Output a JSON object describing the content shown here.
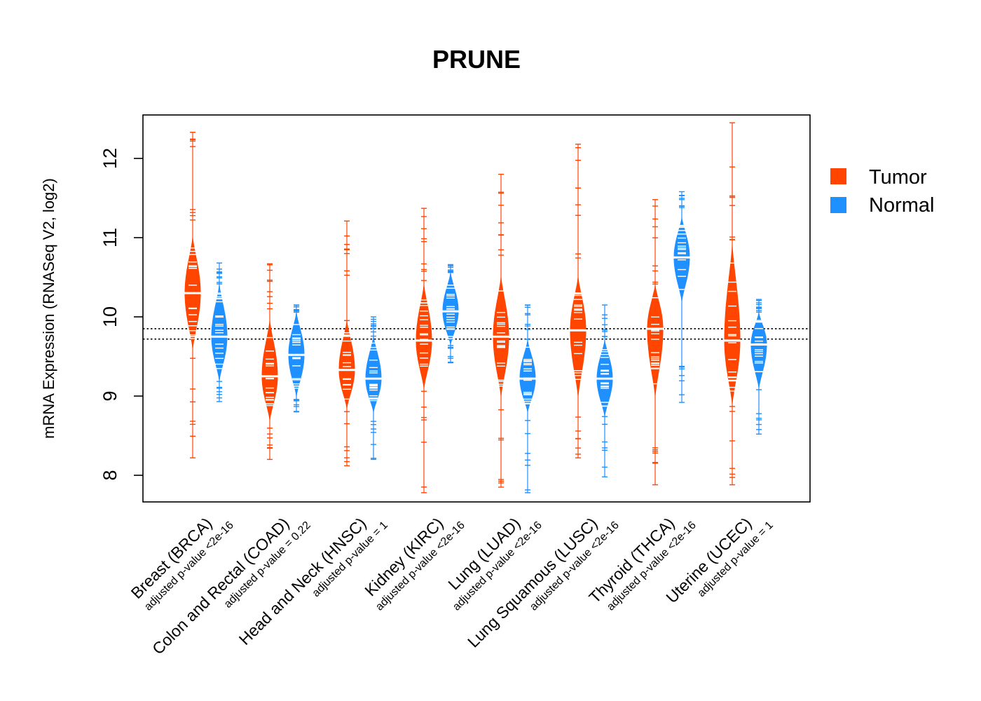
{
  "chart_data": {
    "type": "beanplot",
    "title": "PRUNE",
    "ylabel": "mRNA Expression (RNASeq V2, log2)",
    "xlabel": "",
    "ylim": [
      7.68,
      12.55
    ],
    "yticks": [
      "8",
      "9",
      "10",
      "11",
      "12"
    ],
    "reference_lines": [
      9.72,
      9.85
    ],
    "colors": {
      "Tumor": "#FF4500",
      "Normal": "#1E90FF"
    },
    "legend": {
      "position": "right",
      "entries": [
        "Tumor",
        "Normal"
      ]
    },
    "categories": [
      {
        "name": "Breast (BRCA)",
        "pvalue": "adjusted p-value <2e-16",
        "tumor": {
          "median": 10.3,
          "min": 8.22,
          "max": 12.33,
          "bean": [
            9.6,
            11.0
          ]
        },
        "normal": {
          "median": 9.75,
          "min": 8.93,
          "max": 10.68,
          "bean": [
            9.2,
            10.4
          ]
        }
      },
      {
        "name": "Colon and Rectal (COAD)",
        "pvalue": "adjusted p-value = 0.22",
        "tumor": {
          "median": 9.25,
          "min": 8.2,
          "max": 10.67,
          "bean": [
            8.7,
            9.95
          ]
        },
        "normal": {
          "median": 9.52,
          "min": 8.8,
          "max": 10.15,
          "bean": [
            9.0,
            10.05
          ]
        }
      },
      {
        "name": "Head and Neck (HNSC)",
        "pvalue": "adjusted p-value = 1",
        "tumor": {
          "median": 9.33,
          "min": 8.12,
          "max": 11.21,
          "bean": [
            8.85,
            9.95
          ]
        },
        "normal": {
          "median": 9.22,
          "min": 8.2,
          "max": 10.0,
          "bean": [
            8.8,
            9.75
          ]
        }
      },
      {
        "name": "Kidney (KIRC)",
        "pvalue": "adjusted p-value <2e-16",
        "tumor": {
          "median": 9.7,
          "min": 7.78,
          "max": 11.37,
          "bean": [
            9.1,
            10.4
          ]
        },
        "normal": {
          "median": 10.07,
          "min": 9.42,
          "max": 10.66,
          "bean": [
            9.65,
            10.55
          ]
        }
      },
      {
        "name": "Lung (LUAD)",
        "pvalue": "adjusted p-value <2e-16",
        "tumor": {
          "median": 9.75,
          "min": 7.85,
          "max": 11.8,
          "bean": [
            9.0,
            10.5
          ]
        },
        "normal": {
          "median": 9.22,
          "min": 7.78,
          "max": 10.15,
          "bean": [
            8.8,
            9.7
          ]
        }
      },
      {
        "name": "Lung Squamous (LUSC)",
        "pvalue": "adjusted p-value <2e-16",
        "tumor": {
          "median": 9.83,
          "min": 8.22,
          "max": 12.18,
          "bean": [
            9.0,
            10.5
          ]
        },
        "normal": {
          "median": 9.22,
          "min": 7.98,
          "max": 10.15,
          "bean": [
            8.75,
            9.7
          ]
        }
      },
      {
        "name": "Thyroid (THCA)",
        "pvalue": "adjusted p-value <2e-16",
        "tumor": {
          "median": 9.85,
          "min": 7.88,
          "max": 11.48,
          "bean": [
            9.0,
            10.4
          ]
        },
        "normal": {
          "median": 10.75,
          "min": 8.92,
          "max": 11.58,
          "bean": [
            10.2,
            11.25
          ]
        }
      },
      {
        "name": "Uterine (UCEC)",
        "pvalue": "adjusted p-value = 1",
        "tumor": {
          "median": 9.7,
          "min": 7.88,
          "max": 12.45,
          "bean": [
            8.9,
            10.9
          ]
        },
        "normal": {
          "median": 9.65,
          "min": 8.52,
          "max": 10.22,
          "bean": [
            9.1,
            10.05
          ]
        }
      }
    ]
  }
}
